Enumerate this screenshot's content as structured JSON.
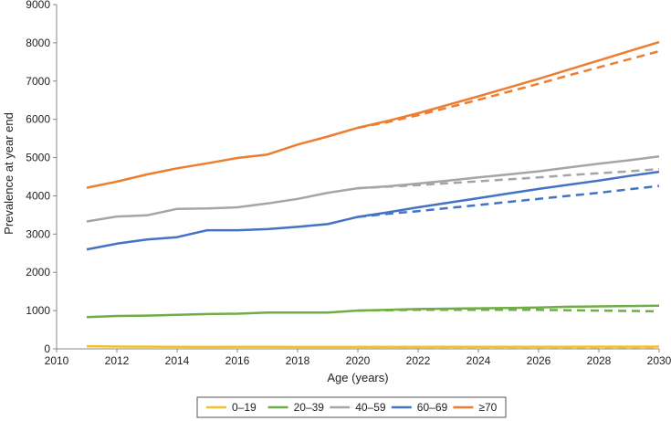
{
  "chart_data": {
    "type": "line",
    "title": "",
    "xlabel": "Age (years)",
    "ylabel": "Prevalence at year end",
    "xlim": [
      2010,
      2030
    ],
    "ylim": [
      0,
      9000
    ],
    "x_ticks": [
      "2010",
      "2012",
      "2014",
      "2016",
      "2018",
      "2020",
      "2022",
      "2024",
      "2026",
      "2028",
      "2030"
    ],
    "y_ticks": [
      "0",
      "1000",
      "2000",
      "3000",
      "4000",
      "5000",
      "6000",
      "7000",
      "8000",
      "9000"
    ],
    "grid": false,
    "legend_position": "bottom",
    "line_styles": {
      "solid": "observed and projected",
      "dashed": "alternative projection"
    },
    "series": [
      {
        "name": "0–19",
        "color": "#f2c12e",
        "x": [
          2011,
          2012,
          2013,
          2014,
          2015,
          2016,
          2017,
          2018,
          2019,
          2020,
          2021,
          2022,
          2023,
          2024,
          2025,
          2026,
          2027,
          2028,
          2029,
          2030
        ],
        "values": [
          70,
          60,
          58,
          55,
          50,
          55,
          55,
          50,
          50,
          50,
          50,
          50,
          52,
          55,
          55,
          55,
          55,
          58,
          58,
          60
        ],
        "projection_x": [
          2020,
          2021,
          2022,
          2023,
          2024,
          2025,
          2026,
          2027,
          2028,
          2029,
          2030
        ],
        "projection": [
          50,
          50,
          48,
          48,
          48,
          47,
          47,
          46,
          46,
          45,
          45
        ]
      },
      {
        "name": "20–39",
        "color": "#70ad47",
        "x": [
          2011,
          2012,
          2013,
          2014,
          2015,
          2016,
          2017,
          2018,
          2019,
          2020,
          2021,
          2022,
          2023,
          2024,
          2025,
          2026,
          2027,
          2028,
          2029,
          2030
        ],
        "values": [
          830,
          860,
          870,
          890,
          910,
          920,
          950,
          950,
          950,
          1000,
          1020,
          1040,
          1050,
          1060,
          1070,
          1080,
          1100,
          1110,
          1120,
          1130
        ],
        "projection_x": [
          2020,
          2021,
          2022,
          2023,
          2024,
          2025,
          2026,
          2027,
          2028,
          2029,
          2030
        ],
        "projection": [
          1000,
          1010,
          1020,
          1020,
          1020,
          1020,
          1020,
          1010,
          1000,
          990,
          980
        ]
      },
      {
        "name": "40–59",
        "color": "#a5a5a5",
        "x": [
          2011,
          2012,
          2013,
          2014,
          2015,
          2016,
          2017,
          2018,
          2019,
          2020,
          2021,
          2022,
          2023,
          2024,
          2025,
          2026,
          2027,
          2028,
          2029,
          2030
        ],
        "values": [
          3330,
          3460,
          3490,
          3660,
          3670,
          3700,
          3800,
          3920,
          4080,
          4200,
          4250,
          4320,
          4400,
          4480,
          4560,
          4640,
          4740,
          4840,
          4930,
          5030
        ],
        "projection_x": [
          2020,
          2021,
          2022,
          2023,
          2024,
          2025,
          2026,
          2027,
          2028,
          2029,
          2030
        ],
        "projection": [
          4200,
          4240,
          4280,
          4330,
          4380,
          4430,
          4480,
          4540,
          4590,
          4640,
          4700
        ]
      },
      {
        "name": "60–69",
        "color": "#4472c4",
        "x": [
          2011,
          2012,
          2013,
          2014,
          2015,
          2016,
          2017,
          2018,
          2019,
          2020,
          2021,
          2022,
          2023,
          2024,
          2025,
          2026,
          2027,
          2028,
          2029,
          2030
        ],
        "values": [
          2600,
          2750,
          2860,
          2920,
          3100,
          3100,
          3130,
          3190,
          3260,
          3450,
          3570,
          3700,
          3820,
          3940,
          4060,
          4180,
          4290,
          4400,
          4520,
          4630
        ],
        "projection_x": [
          2020,
          2021,
          2022,
          2023,
          2024,
          2025,
          2026,
          2027,
          2028,
          2029,
          2030
        ],
        "projection": [
          3450,
          3530,
          3600,
          3680,
          3760,
          3840,
          3920,
          4000,
          4080,
          4170,
          4260
        ]
      },
      {
        "name": "≥70",
        "color": "#ed7d31",
        "x": [
          2011,
          2012,
          2013,
          2014,
          2015,
          2016,
          2017,
          2018,
          2019,
          2020,
          2021,
          2022,
          2023,
          2024,
          2025,
          2026,
          2027,
          2028,
          2029,
          2030
        ],
        "values": [
          4210,
          4370,
          4560,
          4720,
          4850,
          4990,
          5080,
          5340,
          5550,
          5780,
          5960,
          6160,
          6380,
          6600,
          6830,
          7060,
          7300,
          7540,
          7780,
          8020
        ],
        "projection_x": [
          2020,
          2021,
          2022,
          2023,
          2024,
          2025,
          2026,
          2027,
          2028,
          2029,
          2030
        ],
        "projection": [
          5780,
          5930,
          6110,
          6310,
          6510,
          6720,
          6930,
          7150,
          7360,
          7570,
          7780
        ]
      }
    ]
  }
}
